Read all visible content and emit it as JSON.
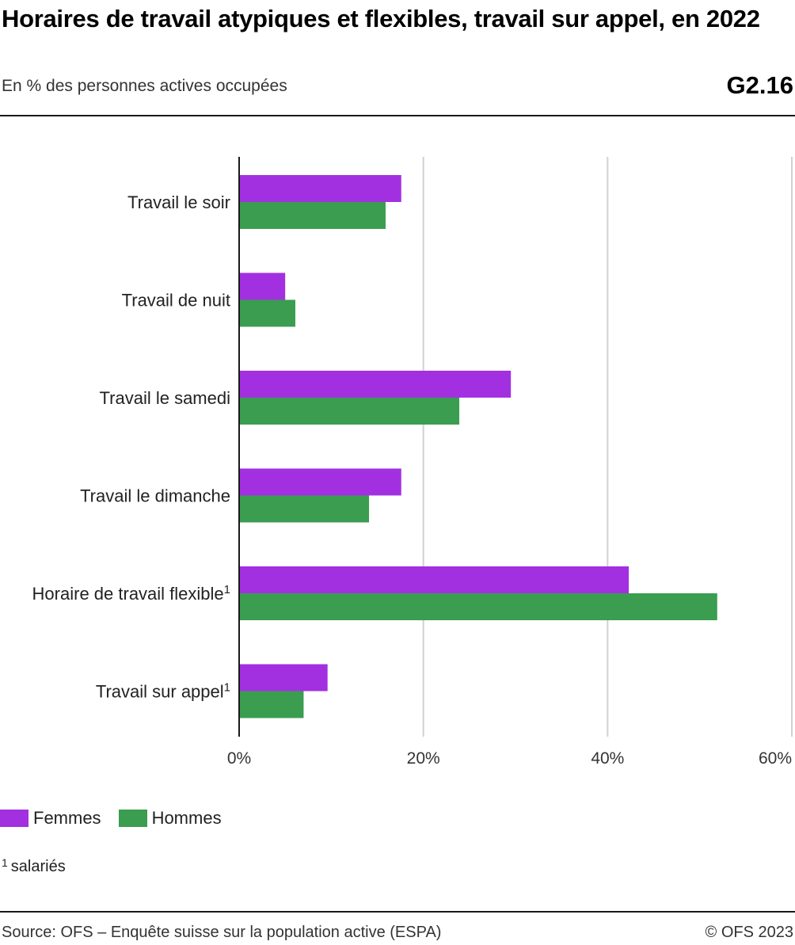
{
  "header": {
    "title": "Horaires de travail atypiques et flexibles, travail sur appel, en 2022",
    "subtitle": "En % des personnes actives occupées",
    "code": "G2.16"
  },
  "footnote": {
    "marker": "1",
    "text": "salariés"
  },
  "footer": {
    "source": "Source: OFS – Enquête suisse sur la population active (ESPA)",
    "copyright": "© OFS 2023"
  },
  "colors": {
    "femmes": "#a230e0",
    "hommes": "#3a9d50",
    "grid": "#d0d0d0",
    "axis": "#1a1a1a"
  },
  "chart_data": {
    "type": "bar",
    "orientation": "horizontal",
    "title": "Horaires de travail atypiques et flexibles, travail sur appel, en 2022",
    "xlabel": "",
    "ylabel": "",
    "xlim": [
      0,
      60
    ],
    "ticks": [
      0,
      20,
      40,
      60
    ],
    "tick_labels": [
      "0%",
      "20%",
      "40%",
      "60%"
    ],
    "grid": true,
    "legend_position": "bottom-left",
    "categories": [
      {
        "label": "Travail le soir",
        "sup": ""
      },
      {
        "label": "Travail de nuit",
        "sup": ""
      },
      {
        "label": "Travail le samedi",
        "sup": ""
      },
      {
        "label": "Travail le dimanche",
        "sup": ""
      },
      {
        "label": "Horaire de travail flexible",
        "sup": "1"
      },
      {
        "label": "Travail sur appel",
        "sup": "1"
      }
    ],
    "series": [
      {
        "name": "Femmes",
        "color": "#a230e0",
        "values": [
          17.6,
          5.0,
          29.5,
          17.6,
          42.3,
          9.6
        ]
      },
      {
        "name": "Hommes",
        "color": "#3a9d50",
        "values": [
          15.9,
          6.1,
          23.9,
          14.1,
          51.9,
          7.0
        ]
      }
    ]
  }
}
